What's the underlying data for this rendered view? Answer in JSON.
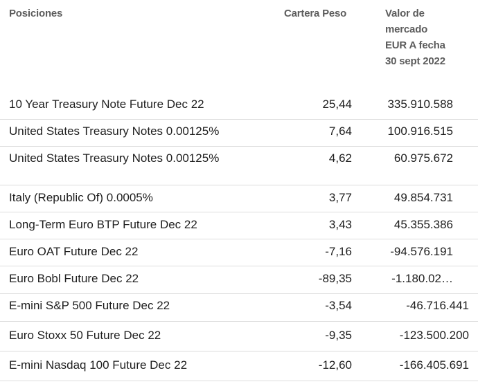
{
  "headers": {
    "positions": "Posiciones",
    "weight": "Cartera Peso",
    "value_lines": [
      "Valor de",
      "mercado",
      "EUR A fecha",
      "30 sept 2022"
    ]
  },
  "rows": [
    {
      "name": "10 Year Treasury Note Future Dec 22",
      "weight": "25,44",
      "value": "335.910.588"
    },
    {
      "name": "United States Treasury Notes 0.00125%",
      "weight": "7,64",
      "value": "100.916.515"
    },
    {
      "name": "United States Treasury Notes 0.00125%",
      "weight": "4,62",
      "value": "60.975.672"
    },
    {
      "name": "Italy (Republic Of) 0.0005%",
      "weight": "3,77",
      "value": "49.854.731"
    },
    {
      "name": "Long-Term Euro BTP Future Dec 22",
      "weight": "3,43",
      "value": "45.355.386"
    },
    {
      "name": "Euro OAT Future Dec 22",
      "weight": "-7,16",
      "value": "-94.576.191"
    },
    {
      "name": "Euro Bobl Future Dec 22",
      "weight": "-89,35",
      "value": "-1.180.02…"
    },
    {
      "name": "E-mini S&P 500 Future Dec 22",
      "weight": "-3,54",
      "value": "-46.716.441"
    },
    {
      "name": "Euro Stoxx 50 Future Dec 22",
      "weight": "-9,35",
      "value": "-123.500.200"
    },
    {
      "name": "E-mini Nasdaq 100 Future Dec 22",
      "weight": "-12,60",
      "value": "-166.405.691"
    }
  ]
}
